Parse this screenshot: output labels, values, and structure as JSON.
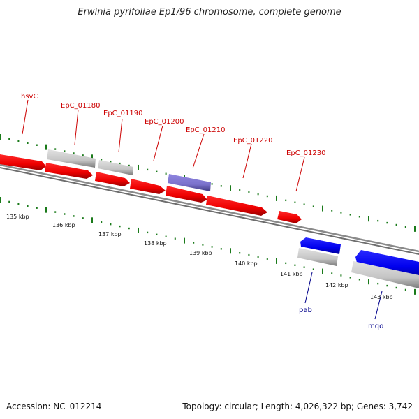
{
  "title": "Erwinia pyrifoliae Ep1/96 chromosome, complete genome",
  "footer": {
    "accession": "Accession: NC_012214",
    "summary": "Topology: circular; Length: 4,026,322 bp; Genes: 3,742"
  },
  "colors": {
    "forward_gene": "#ff0000",
    "reverse_gene": "#0000ff",
    "pseudo_gene": "#c8c8c8",
    "rna_gene": "#7b72cc",
    "tick": "#1a7a1a",
    "backbone": "#8a8a8a",
    "forward_label": "#cc0000",
    "reverse_label": "#00008b"
  },
  "scale": {
    "unit": "kbp",
    "ticks": [
      "135 kbp",
      "136 kbp",
      "137 kbp",
      "138 kbp",
      "139 kbp",
      "140 kbp",
      "141 kbp",
      "142 kbp",
      "143 kbp"
    ]
  },
  "gene_labels": [
    {
      "name": "hsvC",
      "strand": "forward"
    },
    {
      "name": "EpC_01180",
      "strand": "forward"
    },
    {
      "name": "EpC_01190",
      "strand": "forward"
    },
    {
      "name": "EpC_01200",
      "strand": "forward"
    },
    {
      "name": "EpC_01210",
      "strand": "forward"
    },
    {
      "name": "EpC_01220",
      "strand": "forward"
    },
    {
      "name": "EpC_01230",
      "strand": "forward"
    },
    {
      "name": "pab",
      "strand": "reverse"
    },
    {
      "name": "mqo",
      "strand": "reverse"
    }
  ]
}
